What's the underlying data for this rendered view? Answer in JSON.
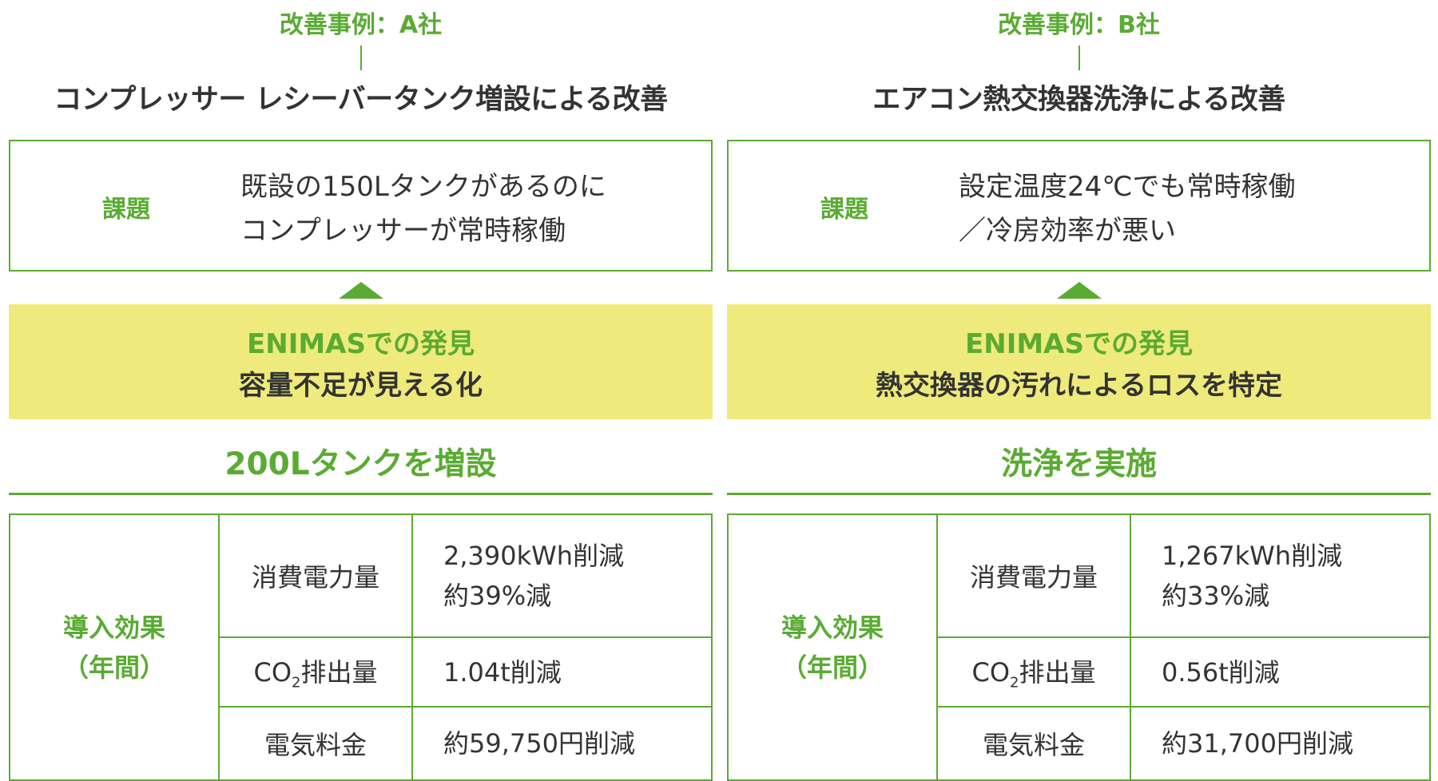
{
  "colors": {
    "accent": "#5aab32",
    "highlight": "#efea7c",
    "text": "#333333"
  },
  "cases": [
    {
      "case_label": "改善事例：A社",
      "title": "コンプレッサー レシーバータンク増設による改善",
      "issue_label": "課題",
      "issue_lines": [
        "既設の150Lタンクがあるのに",
        "コンプレッサーが常時稼働"
      ],
      "finding_heading": "ENIMASでの発見",
      "finding": "容量不足が見える化",
      "action": "200Lタンクを増設",
      "effect_label_1": "導入効果",
      "effect_label_2": "（年間）",
      "rows": [
        {
          "item": "消費電力量",
          "value_lines": [
            "2,390kWh削減",
            "約39%減"
          ]
        },
        {
          "item_prefix": "CO",
          "item_sub": "2",
          "item_suffix": "排出量",
          "value_lines": [
            "1.04t削減"
          ]
        },
        {
          "item": "電気料金",
          "value_lines": [
            "約59,750円削減"
          ]
        }
      ]
    },
    {
      "case_label": "改善事例：B社",
      "title": "エアコン熱交換器洗浄による改善",
      "issue_label": "課題",
      "issue_lines": [
        "設定温度24℃でも常時稼働",
        "／冷房効率が悪い"
      ],
      "finding_heading": "ENIMASでの発見",
      "finding": "熱交換器の汚れによるロスを特定",
      "action": "洗浄を実施",
      "effect_label_1": "導入効果",
      "effect_label_2": "（年間）",
      "rows": [
        {
          "item": "消費電力量",
          "value_lines": [
            "1,267kWh削減",
            "約33%減"
          ]
        },
        {
          "item_prefix": "CO",
          "item_sub": "2",
          "item_suffix": "排出量",
          "value_lines": [
            "0.56t削減"
          ]
        },
        {
          "item": "電気料金",
          "value_lines": [
            "約31,700円削減"
          ]
        }
      ]
    }
  ]
}
